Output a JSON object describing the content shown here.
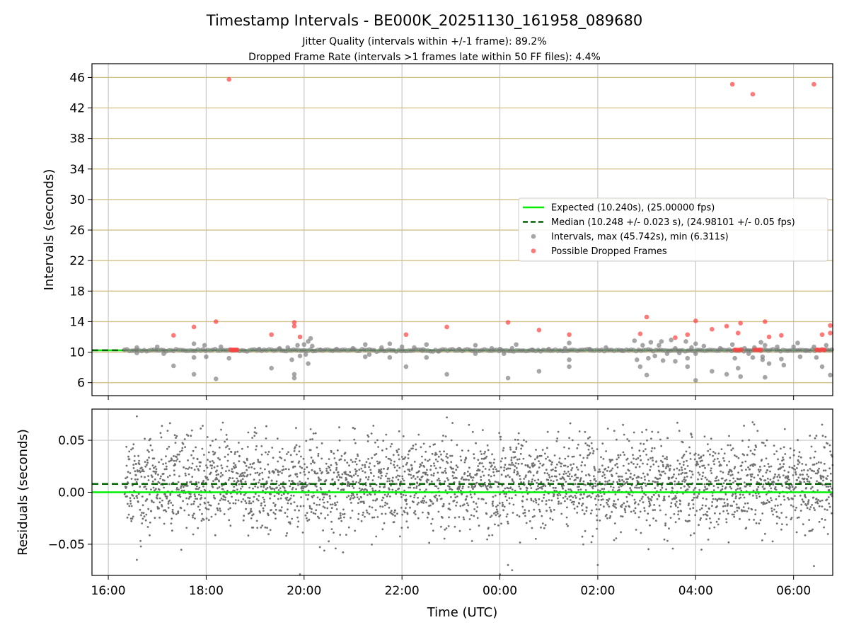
{
  "figure": {
    "title": "Timestamp Intervals - BE000K_20251130_161958_089680",
    "subtitle_lines": [
      "Jitter Quality (intervals within +/-1 frame): 89.2%",
      "Dropped Frame Rate (intervals >1 frames late within 50 FF files): 4.4%"
    ]
  },
  "colors": {
    "expected_line": "#00ee00",
    "median_line": "#006400",
    "intervals_points": "#808080",
    "dropped_points": "#ff4040",
    "grid_horizontal_top": "#d4c08a",
    "grid_vertical": "#c8c8c8",
    "residual_points": "#707070"
  },
  "chart_data": [
    {
      "type": "scatter",
      "x_is_time": true,
      "xlabel": "",
      "ylabel": "Intervals (seconds)",
      "xlim": [
        "15:40",
        "06:48"
      ],
      "ylim": [
        4.3,
        47.8
      ],
      "yticks": [
        6,
        10,
        14,
        18,
        22,
        26,
        30,
        34,
        38,
        42,
        46
      ],
      "grid": true,
      "legend_placement": "center-right",
      "lines": [
        {
          "name": "Expected (10.240s), (25.00000 fps)",
          "style": "solid",
          "color": "#00ee00",
          "y": 10.24
        },
        {
          "name": "Median (10.248 +/- 0.023 s), (24.98101 +/- 0.05 fps)",
          "style": "dashed",
          "color": "#006400",
          "y": 10.248
        }
      ],
      "series": [
        {
          "name": "Intervals, max (45.742s), min (6.311s)",
          "marker": "circle",
          "color": "#808080",
          "points": [
            {
              "t": "16:35",
              "y": 10.6
            },
            {
              "t": "16:35",
              "y": 9.9
            },
            {
              "t": "17:00",
              "y": 10.7
            },
            {
              "t": "17:08",
              "y": 9.8
            },
            {
              "t": "17:20",
              "y": 8.2
            },
            {
              "t": "17:45",
              "y": 11.1
            },
            {
              "t": "17:45",
              "y": 9.3
            },
            {
              "t": "17:45",
              "y": 7.1
            },
            {
              "t": "17:58",
              "y": 10.9
            },
            {
              "t": "18:00",
              "y": 9.4
            },
            {
              "t": "18:12",
              "y": 6.5
            },
            {
              "t": "18:18",
              "y": 10.7
            },
            {
              "t": "18:28",
              "y": 9.2
            },
            {
              "t": "19:05",
              "y": 10.4
            },
            {
              "t": "19:20",
              "y": 7.9
            },
            {
              "t": "19:30",
              "y": 10.5
            },
            {
              "t": "19:40",
              "y": 10.6
            },
            {
              "t": "19:45",
              "y": 9.0
            },
            {
              "t": "19:48",
              "y": 7.1
            },
            {
              "t": "19:48",
              "y": 6.6
            },
            {
              "t": "19:52",
              "y": 10.9
            },
            {
              "t": "19:55",
              "y": 9.5
            },
            {
              "t": "20:00",
              "y": 11.0
            },
            {
              "t": "20:02",
              "y": 9.7
            },
            {
              "t": "20:05",
              "y": 11.4
            },
            {
              "t": "20:05",
              "y": 8.5
            },
            {
              "t": "20:08",
              "y": 11.8
            },
            {
              "t": "20:10",
              "y": 10.8
            },
            {
              "t": "20:20",
              "y": 10.3
            },
            {
              "t": "20:40",
              "y": 10.4
            },
            {
              "t": "21:00",
              "y": 10.5
            },
            {
              "t": "21:15",
              "y": 11.0
            },
            {
              "t": "21:15",
              "y": 9.4
            },
            {
              "t": "21:20",
              "y": 9.7
            },
            {
              "t": "21:35",
              "y": 10.6
            },
            {
              "t": "21:45",
              "y": 11.1
            },
            {
              "t": "21:45",
              "y": 9.3
            },
            {
              "t": "22:00",
              "y": 10.7
            },
            {
              "t": "22:05",
              "y": 8.1
            },
            {
              "t": "22:15",
              "y": 10.6
            },
            {
              "t": "22:25",
              "y": 10.2
            },
            {
              "t": "22:30",
              "y": 11.0
            },
            {
              "t": "22:30",
              "y": 9.3
            },
            {
              "t": "22:45",
              "y": 10.1
            },
            {
              "t": "22:55",
              "y": 7.1
            },
            {
              "t": "23:10",
              "y": 10.4
            },
            {
              "t": "23:30",
              "y": 10.9
            },
            {
              "t": "23:30",
              "y": 9.8
            },
            {
              "t": "23:50",
              "y": 10.5
            },
            {
              "t": "00:00",
              "y": 10.4
            },
            {
              "t": "00:05",
              "y": 9.8
            },
            {
              "t": "00:10",
              "y": 6.6
            },
            {
              "t": "00:15",
              "y": 10.5
            },
            {
              "t": "00:20",
              "y": 11.0
            },
            {
              "t": "00:40",
              "y": 10.3
            },
            {
              "t": "00:48",
              "y": 7.5
            },
            {
              "t": "01:00",
              "y": 10.4
            },
            {
              "t": "01:20",
              "y": 10.5
            },
            {
              "t": "01:25",
              "y": 11.2
            },
            {
              "t": "01:25",
              "y": 9.0
            },
            {
              "t": "01:25",
              "y": 8.1
            },
            {
              "t": "01:50",
              "y": 10.4
            },
            {
              "t": "02:10",
              "y": 10.6
            },
            {
              "t": "02:30",
              "y": 10.2
            },
            {
              "t": "02:45",
              "y": 11.5
            },
            {
              "t": "02:48",
              "y": 9.0
            },
            {
              "t": "02:52",
              "y": 8.1
            },
            {
              "t": "02:55",
              "y": 10.9
            },
            {
              "t": "03:00",
              "y": 7.0
            },
            {
              "t": "03:02",
              "y": 9.2
            },
            {
              "t": "03:05",
              "y": 11.3
            },
            {
              "t": "03:10",
              "y": 9.5
            },
            {
              "t": "03:15",
              "y": 10.9
            },
            {
              "t": "03:18",
              "y": 11.4
            },
            {
              "t": "03:20",
              "y": 8.9
            },
            {
              "t": "03:25",
              "y": 9.8
            },
            {
              "t": "03:30",
              "y": 11.6
            },
            {
              "t": "03:35",
              "y": 10.5
            },
            {
              "t": "03:35",
              "y": 8.8
            },
            {
              "t": "03:40",
              "y": 9.9
            },
            {
              "t": "03:48",
              "y": 11.4
            },
            {
              "t": "03:50",
              "y": 9.2
            },
            {
              "t": "03:50",
              "y": 8.1
            },
            {
              "t": "03:55",
              "y": 10.6
            },
            {
              "t": "04:00",
              "y": 11.1
            },
            {
              "t": "04:00",
              "y": 9.8
            },
            {
              "t": "04:00",
              "y": 6.3
            },
            {
              "t": "04:10",
              "y": 10.8
            },
            {
              "t": "04:20",
              "y": 7.5
            },
            {
              "t": "04:30",
              "y": 10.5
            },
            {
              "t": "04:38",
              "y": 7.1
            },
            {
              "t": "04:45",
              "y": 11.0
            },
            {
              "t": "04:48",
              "y": 9.2
            },
            {
              "t": "04:52",
              "y": 7.9
            },
            {
              "t": "04:55",
              "y": 6.8
            },
            {
              "t": "05:00",
              "y": 10.5
            },
            {
              "t": "05:05",
              "y": 9.8
            },
            {
              "t": "05:10",
              "y": 9.3
            },
            {
              "t": "05:12",
              "y": 10.6
            },
            {
              "t": "05:20",
              "y": 11.3
            },
            {
              "t": "05:22",
              "y": 9.4
            },
            {
              "t": "05:22",
              "y": 9.0
            },
            {
              "t": "05:25",
              "y": 10.9
            },
            {
              "t": "05:25",
              "y": 6.7
            },
            {
              "t": "05:30",
              "y": 8.5
            },
            {
              "t": "05:40",
              "y": 10.7
            },
            {
              "t": "05:45",
              "y": 9.1
            },
            {
              "t": "05:48",
              "y": 8.3
            },
            {
              "t": "06:00",
              "y": 10.7
            },
            {
              "t": "06:05",
              "y": 11.2
            },
            {
              "t": "06:08",
              "y": 9.4
            },
            {
              "t": "06:15",
              "y": 10.2
            },
            {
              "t": "06:25",
              "y": 10.7
            },
            {
              "t": "06:28",
              "y": 9.3
            },
            {
              "t": "06:35",
              "y": 8.1
            },
            {
              "t": "06:40",
              "y": 10.9
            },
            {
              "t": "06:45",
              "y": 7.0
            }
          ]
        },
        {
          "name": "Possible Dropped Frames",
          "marker": "circle",
          "color": "#ff4040",
          "points": [
            {
              "t": "17:20",
              "y": 12.2
            },
            {
              "t": "17:45",
              "y": 13.3
            },
            {
              "t": "18:12",
              "y": 14.0
            },
            {
              "t": "18:28",
              "y": 45.742
            },
            {
              "t": "18:30",
              "y": 10.3
            },
            {
              "t": "18:32",
              "y": 10.3
            },
            {
              "t": "18:34",
              "y": 10.3
            },
            {
              "t": "18:36",
              "y": 10.3
            },
            {
              "t": "18:38",
              "y": 10.3
            },
            {
              "t": "19:20",
              "y": 12.3
            },
            {
              "t": "19:48",
              "y": 13.9
            },
            {
              "t": "19:48",
              "y": 13.4
            },
            {
              "t": "19:55",
              "y": 12.0
            },
            {
              "t": "22:05",
              "y": 12.3
            },
            {
              "t": "22:55",
              "y": 13.3
            },
            {
              "t": "00:10",
              "y": 13.9
            },
            {
              "t": "00:48",
              "y": 12.9
            },
            {
              "t": "01:25",
              "y": 12.3
            },
            {
              "t": "02:52",
              "y": 12.4
            },
            {
              "t": "03:00",
              "y": 14.6
            },
            {
              "t": "03:35",
              "y": 11.9
            },
            {
              "t": "03:50",
              "y": 12.3
            },
            {
              "t": "04:00",
              "y": 14.1
            },
            {
              "t": "04:20",
              "y": 13.0
            },
            {
              "t": "04:38",
              "y": 13.4
            },
            {
              "t": "04:45",
              "y": 45.1
            },
            {
              "t": "04:48",
              "y": 10.3
            },
            {
              "t": "04:50",
              "y": 10.3
            },
            {
              "t": "04:52",
              "y": 12.5
            },
            {
              "t": "04:53",
              "y": 10.3
            },
            {
              "t": "04:55",
              "y": 13.8
            },
            {
              "t": "04:56",
              "y": 10.3
            },
            {
              "t": "05:10",
              "y": 43.8
            },
            {
              "t": "05:12",
              "y": 10.3
            },
            {
              "t": "05:15",
              "y": 10.3
            },
            {
              "t": "05:18",
              "y": 10.3
            },
            {
              "t": "05:20",
              "y": 10.3
            },
            {
              "t": "05:25",
              "y": 14.0
            },
            {
              "t": "05:30",
              "y": 12.0
            },
            {
              "t": "05:45",
              "y": 12.2
            },
            {
              "t": "06:25",
              "y": 45.1
            },
            {
              "t": "06:28",
              "y": 10.3
            },
            {
              "t": "06:30",
              "y": 10.3
            },
            {
              "t": "06:33",
              "y": 10.3
            },
            {
              "t": "06:35",
              "y": 12.3
            },
            {
              "t": "06:36",
              "y": 10.3
            },
            {
              "t": "06:38",
              "y": 10.3
            },
            {
              "t": "06:45",
              "y": 13.5
            },
            {
              "t": "06:45",
              "y": 12.5
            }
          ]
        }
      ]
    },
    {
      "type": "scatter",
      "x_is_time": true,
      "xlabel": "Time (UTC)",
      "ylabel": "Residuals (seconds)",
      "xlim": [
        "15:40",
        "06:48"
      ],
      "ylim": [
        -0.08,
        0.08
      ],
      "xticks": [
        "16:00",
        "18:00",
        "20:00",
        "22:00",
        "00:00",
        "02:00",
        "04:00",
        "06:00"
      ],
      "yticks": [
        -0.05,
        0.0,
        0.05
      ],
      "ytick_labels": [
        "−0.05",
        "0.00",
        "0.05"
      ],
      "grid": true,
      "lines": [
        {
          "name": "",
          "style": "solid",
          "color": "#00ee00",
          "y": 0.0
        },
        {
          "name": "",
          "style": "dashed",
          "color": "#006400",
          "y": 0.008
        }
      ],
      "series": [
        {
          "name": "",
          "color": "#707070",
          "x_range": [
            "16:20",
            "06:48"
          ],
          "approx_count": 3200,
          "center": 0.008,
          "spread_std": 0.022,
          "points": [
            {
              "t": "16:35",
              "y": 0.073
            },
            {
              "t": "16:35",
              "y": -0.065
            },
            {
              "t": "19:55",
              "y": -0.079
            },
            {
              "t": "00:00",
              "y": -0.079
            },
            {
              "t": "00:15",
              "y": -0.075
            },
            {
              "t": "00:10",
              "y": -0.07
            },
            {
              "t": "02:00",
              "y": -0.07
            },
            {
              "t": "06:25",
              "y": -0.071
            },
            {
              "t": "22:55",
              "y": 0.072
            },
            {
              "t": "06:35",
              "y": 0.065
            },
            {
              "t": "19:00",
              "y": 0.062
            },
            {
              "t": "21:00",
              "y": 0.062
            }
          ]
        }
      ]
    }
  ]
}
